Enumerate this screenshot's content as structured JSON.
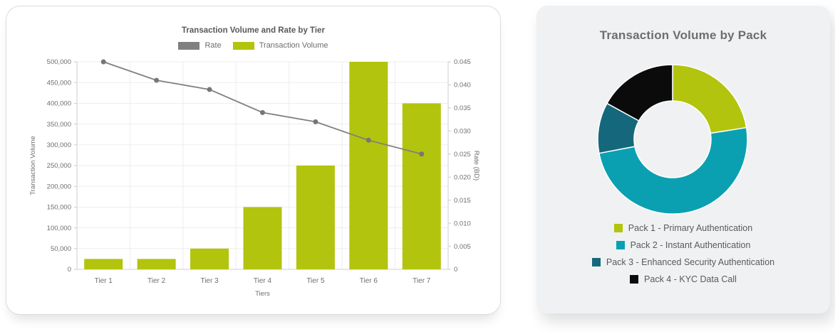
{
  "chart_data": [
    {
      "type": "bar",
      "subtype": "combo-bar-line-dual-axis",
      "title": "Transaction Volume and Rate by Tier",
      "categories": [
        "Tier 1",
        "Tier 2",
        "Tier 3",
        "Tier 4",
        "Tier 5",
        "Tier 6",
        "Tier 7"
      ],
      "xlabel": "Tiers",
      "series": [
        {
          "name": "Transaction Volume",
          "type": "bar",
          "axis": "left",
          "color": "#b2c40d",
          "values": [
            25000,
            25000,
            50000,
            150000,
            250000,
            500000,
            400000
          ]
        },
        {
          "name": "Rate",
          "type": "line",
          "axis": "right",
          "color": "#808080",
          "values": [
            0.045,
            0.041,
            0.039,
            0.034,
            0.032,
            0.028,
            0.025
          ]
        }
      ],
      "left_axis": {
        "label": "Transaction Volume",
        "min": 0,
        "max": 500000,
        "step": 50000
      },
      "right_axis": {
        "label": "Rate (BD)",
        "min": 0,
        "max": 0.045,
        "step": 0.005
      },
      "grid": true,
      "legend_position": "top",
      "legend_order": [
        "Rate",
        "Transaction Volume"
      ]
    },
    {
      "type": "pie",
      "subtype": "donut",
      "title": "Transaction Volume by Pack",
      "labels": [
        "Pack 1 - Primary Authentication",
        "Pack 2 - Instant Authentication",
        "Pack 3 - Enhanced Security Authentication",
        "Pack 4 - KYC Data Call"
      ],
      "values_percent": [
        22.5,
        49.5,
        11,
        17
      ],
      "colors": [
        "#b2c40d",
        "#0aa0b2",
        "#15687c",
        "#0b0b0b"
      ],
      "start_angle_deg": 0,
      "direction": "clockwise",
      "legend_position": "bottom"
    }
  ]
}
